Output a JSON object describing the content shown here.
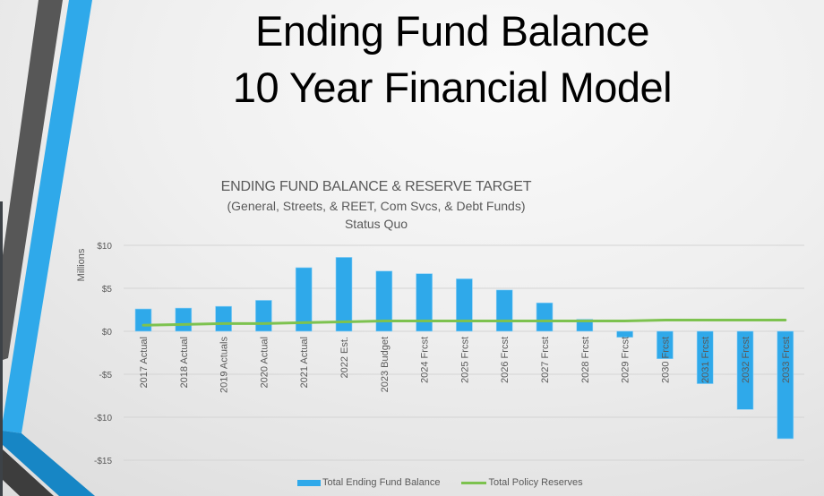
{
  "slide": {
    "title_line_1": "Ending Fund Balance",
    "title_line_2": "10 Year Financial Model"
  },
  "colors": {
    "bar": "#2fa9ea",
    "line": "#7dc24f",
    "gridline": "#d4d4d4",
    "accent_dark": "#575757",
    "accent_blue": "#2fa9ea",
    "accent_blue_dark": "#1786c5",
    "accent_charcoal": "#3d3d3d"
  },
  "chart_data": {
    "type": "bar",
    "title": "ENDING FUND BALANCE & RESERVE TARGET",
    "subtitle": "(General, Streets, & REET, Com Svcs, & Debt Funds)",
    "subtitle_2": "Status Quo",
    "xlabel": "",
    "ylabel": "Millions",
    "ylim": [
      -15,
      10
    ],
    "yticks": [
      10,
      5,
      0,
      -5,
      -10,
      -15
    ],
    "ytick_labels": [
      "$10",
      "$5",
      "$0",
      "-$5",
      "-$10",
      "-$15"
    ],
    "grid": true,
    "legend_position": "bottom",
    "categories": [
      "2017 Actual",
      "2018 Actual",
      "2019 Actuals",
      "2020 Actual",
      "2021 Actual",
      "2022 Est.",
      "2023 Budget",
      "2024 Frcst",
      "2025 Frcst",
      "2026 Frcst",
      "2027 Frcst",
      "2028 Frcst",
      "2029 Frcst",
      "2030 Frcst",
      "2031 Frcst",
      "2032 Frcst",
      "2033 Frcst"
    ],
    "series": [
      {
        "name": "Total Ending Fund Balance",
        "type": "bar",
        "values": [
          2.6,
          2.7,
          2.9,
          3.6,
          7.4,
          8.6,
          7.0,
          6.7,
          6.1,
          4.8,
          3.3,
          1.4,
          -0.7,
          -3.2,
          -6.1,
          -9.1,
          -12.5
        ]
      },
      {
        "name": "Total Policy Reserves",
        "type": "line",
        "values": [
          0.7,
          0.8,
          0.9,
          0.9,
          1.0,
          1.1,
          1.2,
          1.2,
          1.2,
          1.2,
          1.2,
          1.2,
          1.2,
          1.3,
          1.3,
          1.3,
          1.3
        ]
      }
    ]
  },
  "legend": {
    "items": [
      {
        "label": "Total Ending Fund Balance"
      },
      {
        "label": "Total Policy Reserves"
      }
    ]
  }
}
